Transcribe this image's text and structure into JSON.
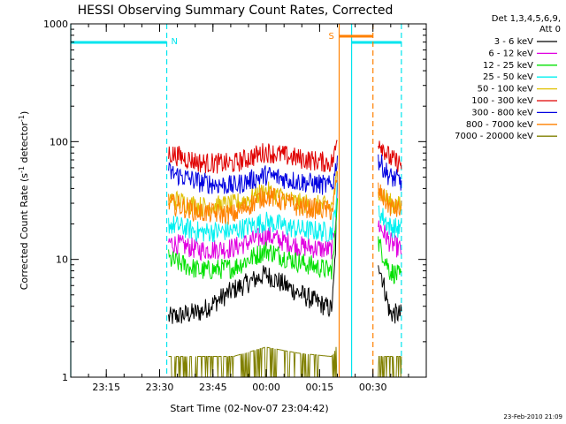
{
  "chart_data": {
    "type": "line",
    "title": "HESSI Observing Summary Count Rates, Corrected",
    "xlabel": "Start Time (02-Nov-07 23:04:42)",
    "ylabel": "Corrected Count Rate (s⁻¹ detector⁻¹)",
    "ylabel_main": "Corrected Count Rate (s",
    "ylabel_sup1": "-1",
    "ylabel_mid": " detector",
    "ylabel_sup2": "-1",
    "ylabel_end": ")",
    "y_scale": "log",
    "ylim": [
      1,
      1000
    ],
    "y_ticks": [
      "1",
      "10",
      "100",
      "1000"
    ],
    "x_ticks": [
      "23:15",
      "23:30",
      "23:45",
      "00:00",
      "00:15",
      "00:30"
    ],
    "x_tick_minutes": [
      10,
      25,
      40,
      55,
      70,
      85
    ],
    "xlim_minutes": [
      0,
      100
    ],
    "grid": false,
    "legend_header": [
      "Det 1,3,4,5,6,9,",
      "Att 0"
    ],
    "legend_placement": "right",
    "series": [
      {
        "name": "3 - 6 keV",
        "color": "#000000",
        "pre": [
          3.2,
          3.6,
          5.5,
          7.5,
          5.2,
          3.8,
          40
        ],
        "post": [
          10,
          3.5,
          3.4
        ]
      },
      {
        "name": "6 - 12 keV",
        "color": "#e000e0",
        "pre": [
          14,
          12,
          12.5,
          16,
          13,
          12,
          40
        ],
        "post": [
          20,
          14,
          12
        ]
      },
      {
        "name": "12 - 25 keV",
        "color": "#00e000",
        "pre": [
          10,
          8,
          8.5,
          12,
          9.5,
          8,
          40
        ],
        "post": [
          14,
          8,
          7
        ]
      },
      {
        "name": "25 - 50 keV",
        "color": "#00f0f0",
        "pre": [
          20,
          17,
          17.5,
          21,
          18,
          17,
          45
        ],
        "post": [
          26,
          19,
          18
        ]
      },
      {
        "name": "50 - 100 keV",
        "color": "#e0c000",
        "pre": [
          33,
          28,
          29,
          38,
          30,
          28,
          60
        ],
        "post": [
          40,
          30,
          28
        ]
      },
      {
        "name": "100 - 300 keV",
        "color": "#e00000",
        "pre": [
          80,
          66,
          65,
          82,
          72,
          66,
          110
        ],
        "post": [
          105,
          72,
          64
        ]
      },
      {
        "name": "300 - 800 keV",
        "color": "#0000e0",
        "pre": [
          55,
          45,
          42,
          52,
          46,
          42,
          80
        ],
        "post": [
          70,
          50,
          46
        ]
      },
      {
        "name": "800 - 7000 keV",
        "color": "#ff8000",
        "pre": [
          30,
          25,
          24,
          35,
          28,
          26,
          55
        ],
        "post": [
          38,
          28,
          26
        ]
      },
      {
        "name": "7000 - 20000 keV",
        "color": "#808000",
        "pre": [
          1.5,
          1.5,
          1.5,
          1.8,
          1.6,
          1.5,
          2
        ],
        "post": [
          1.5,
          1.5,
          1.5
        ]
      }
    ],
    "pre_segment_minutes": [
      27.5,
      75
    ],
    "post_segment_minutes": [
      86.5,
      93
    ],
    "annotations": [
      {
        "label": "N",
        "color": "#00e5ee",
        "start_min": 0,
        "end_min": 27
      },
      {
        "label": "N",
        "color": "#00e5ee",
        "start_min": 79,
        "end_min": 93
      },
      {
        "label": "S",
        "color": "#ff8000",
        "start_min": 75.5,
        "end_min": 85
      }
    ],
    "footer_stamp": "23-Feb-2010 21:09"
  }
}
